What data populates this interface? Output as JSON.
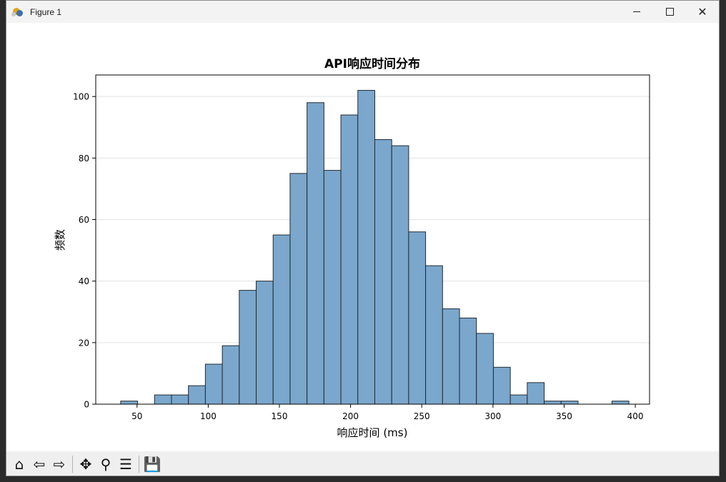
{
  "window": {
    "title": "Figure 1",
    "controls": {
      "minimize": "minimize",
      "maximize": "maximize",
      "close": "close"
    }
  },
  "toolbar": {
    "items": [
      {
        "name": "home-icon",
        "glyph": "⌂"
      },
      {
        "name": "back-icon",
        "glyph": "⇦"
      },
      {
        "name": "forward-icon",
        "glyph": "⇨"
      },
      {
        "name": "pan-icon",
        "glyph": "✥"
      },
      {
        "name": "zoom-icon",
        "glyph": "⚲"
      },
      {
        "name": "configure-subplots-icon",
        "glyph": "☰"
      },
      {
        "name": "save-icon",
        "glyph": "💾"
      }
    ]
  },
  "chart_data": {
    "type": "bar",
    "title": "API响应时间分布",
    "xlabel": "响应时间 (ms)",
    "ylabel": "频数",
    "xlim": [
      21,
      410
    ],
    "ylim": [
      0,
      107
    ],
    "xticks": [
      50,
      100,
      150,
      200,
      250,
      300,
      350,
      400
    ],
    "yticks": [
      0,
      20,
      40,
      60,
      80,
      100
    ],
    "grid": "y",
    "bin_edges": [
      38.5,
      50.4,
      62.3,
      74.2,
      86.1,
      98.0,
      109.9,
      121.8,
      133.7,
      145.6,
      157.5,
      169.4,
      181.3,
      193.2,
      205.1,
      217.0,
      228.9,
      240.8,
      252.7,
      264.6,
      276.5,
      288.4,
      300.3,
      312.2,
      324.1,
      336.0,
      347.9,
      359.8,
      371.7,
      383.6,
      395.5
    ],
    "counts": [
      1,
      0,
      3,
      3,
      6,
      13,
      19,
      37,
      40,
      55,
      75,
      98,
      76,
      94,
      102,
      86,
      84,
      56,
      45,
      31,
      28,
      23,
      12,
      3,
      7,
      1,
      1,
      0,
      0,
      1
    ],
    "colors": {
      "bar_fill": "#7ba7cc",
      "bar_edge": "#1f2a33",
      "grid": "#e3e3e3"
    }
  }
}
